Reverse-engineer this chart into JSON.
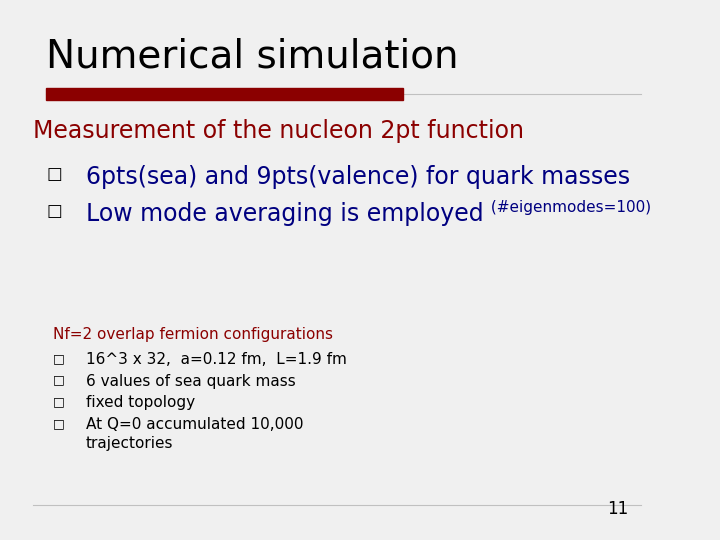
{
  "title": "Numerical simulation",
  "title_color": "#000000",
  "title_fontsize": 28,
  "title_font": "sans-serif",
  "bg_color": "#f0f0f0",
  "bar_color_dark": "#8b0000",
  "bar_color_light": "#c0c0c0",
  "separator_line_thin_color": "#c0c0c0",
  "main_text_color": "#8b0000",
  "bullet_text_color": "#000080",
  "small_text_color": "#8b0000",
  "small_bullet_color": "#000000",
  "main_heading": "Measurement of the nucleon 2pt function",
  "main_heading_fontsize": 17,
  "bullet1": "6pts(sea) and 9pts(valence) for quark masses",
  "bullet1_fontsize": 17,
  "bullet2_part1": "Low mode averaging is employed",
  "bullet2_part2": " (#eigenmodes=100)",
  "bullet2_fontsize": 17,
  "bullet2_small_fontsize": 11,
  "small_heading": "Nf=2 overlap fermion configurations",
  "small_heading_fontsize": 11,
  "small_bullet1": "16^3 x 32,  a=0.12 fm,  L=1.9 fm",
  "small_bullet2": "6 values of sea quark mass",
  "small_bullet3": "fixed topology",
  "small_bullet4": "At Q=0 accumulated 10,000",
  "small_bullet4b": "trajectories",
  "small_fontsize": 11,
  "page_number": "11",
  "page_num_fontsize": 12
}
